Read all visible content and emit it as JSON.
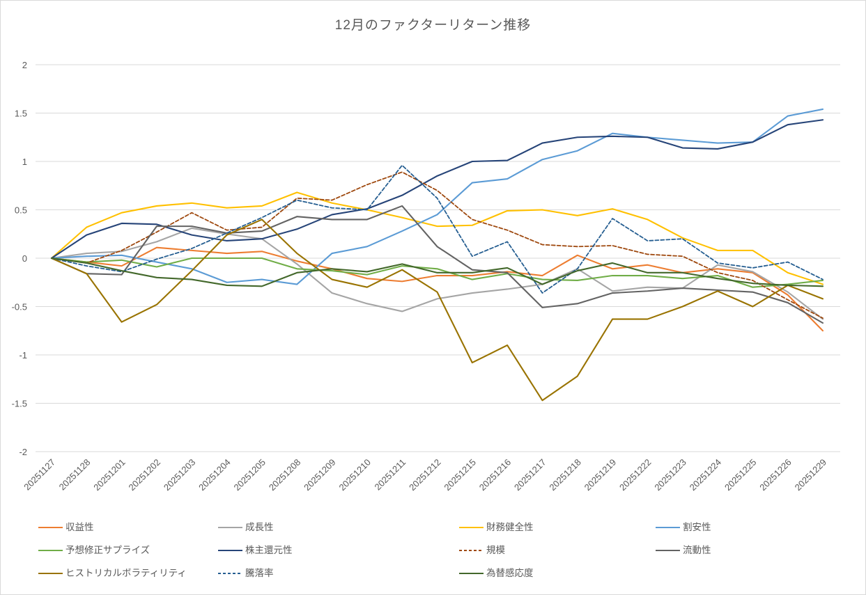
{
  "chart": {
    "title": "12月のファクターリターン推移"
  },
  "chart_data": {
    "type": "line",
    "title": "12月のファクターリターン推移",
    "xlabel": "",
    "ylabel": "",
    "ylim": [
      -2,
      2
    ],
    "grid": true,
    "legend_position": "bottom",
    "y_ticks": [
      "2",
      "1.5",
      "1",
      "0.5",
      "0",
      "-0.5",
      "-1",
      "-1.5",
      "-2"
    ],
    "y_tick_values": [
      2,
      1.5,
      1,
      0.5,
      0,
      -0.5,
      -1,
      -1.5,
      -2
    ],
    "categories": [
      "20251127",
      "20251128",
      "20251201",
      "20251202",
      "20251203",
      "20251204",
      "20251205",
      "20251208",
      "20251209",
      "20251210",
      "20251211",
      "20251212",
      "20251215",
      "20251216",
      "20251217",
      "20251218",
      "20251219",
      "20251222",
      "20251223",
      "20251224",
      "20251225",
      "20251226",
      "20251229"
    ],
    "series": [
      {
        "key": "profitability",
        "name": "収益性",
        "color": "#ED7D31",
        "dash": false,
        "values": [
          0,
          -0.04,
          -0.08,
          0.11,
          0.08,
          0.05,
          0.07,
          -0.03,
          -0.11,
          -0.21,
          -0.24,
          -0.18,
          -0.18,
          -0.14,
          -0.18,
          0.03,
          -0.11,
          -0.07,
          -0.15,
          -0.11,
          -0.15,
          -0.38,
          -0.75
        ]
      },
      {
        "key": "growth",
        "name": "成長性",
        "color": "#A5A5A5",
        "dash": false,
        "values": [
          0,
          0.05,
          0.07,
          0.17,
          0.31,
          0.25,
          0.2,
          -0.06,
          -0.36,
          -0.47,
          -0.55,
          -0.42,
          -0.36,
          -0.32,
          -0.27,
          -0.11,
          -0.34,
          -0.3,
          -0.31,
          -0.07,
          -0.14,
          -0.35,
          -0.63
        ]
      },
      {
        "key": "financial-health",
        "name": "財務健全性",
        "color": "#FFC000",
        "dash": false,
        "values": [
          0,
          0.32,
          0.47,
          0.54,
          0.57,
          0.52,
          0.54,
          0.68,
          0.57,
          0.5,
          0.42,
          0.33,
          0.34,
          0.49,
          0.5,
          0.44,
          0.51,
          0.4,
          0.21,
          0.08,
          0.08,
          -0.15,
          -0.27
        ]
      },
      {
        "key": "value",
        "name": "割安性",
        "color": "#5B9BD5",
        "dash": false,
        "values": [
          0,
          0.02,
          0.03,
          -0.04,
          -0.11,
          -0.25,
          -0.22,
          -0.27,
          0.05,
          0.12,
          0.28,
          0.45,
          0.78,
          0.82,
          1.02,
          1.11,
          1.29,
          1.25,
          1.22,
          1.19,
          1.2,
          1.47,
          1.54
        ]
      },
      {
        "key": "estimate-revision-surprise",
        "name": "予想修正サプライズ",
        "color": "#70AD47",
        "dash": false,
        "values": [
          0,
          -0.04,
          -0.02,
          -0.09,
          0,
          0,
          0,
          -0.11,
          -0.13,
          -0.17,
          -0.08,
          -0.11,
          -0.22,
          -0.16,
          -0.22,
          -0.23,
          -0.18,
          -0.18,
          -0.21,
          -0.18,
          -0.3,
          -0.27,
          -0.23
        ]
      },
      {
        "key": "shareholder-return",
        "name": "株主還元性",
        "color": "#264478",
        "dash": false,
        "values": [
          0,
          0.24,
          0.36,
          0.35,
          0.24,
          0.18,
          0.2,
          0.3,
          0.45,
          0.51,
          0.65,
          0.85,
          1.0,
          1.01,
          1.19,
          1.25,
          1.26,
          1.25,
          1.14,
          1.13,
          1.2,
          1.38,
          1.43
        ]
      },
      {
        "key": "size",
        "name": "規模",
        "color": "#9E480E",
        "dash": true,
        "values": [
          0,
          -0.05,
          0.08,
          0.27,
          0.47,
          0.29,
          0.32,
          0.62,
          0.6,
          0.76,
          0.89,
          0.7,
          0.4,
          0.29,
          0.14,
          0.12,
          0.13,
          0.04,
          0.02,
          -0.15,
          -0.23,
          -0.43,
          -0.62
        ]
      },
      {
        "key": "liquidity",
        "name": "流動性",
        "color": "#636363",
        "dash": false,
        "values": [
          0,
          -0.16,
          -0.17,
          0.33,
          0.33,
          0.26,
          0.28,
          0.43,
          0.4,
          0.4,
          0.54,
          0.12,
          -0.12,
          -0.15,
          -0.51,
          -0.47,
          -0.36,
          -0.34,
          -0.31,
          -0.33,
          -0.35,
          -0.46,
          -0.67
        ]
      },
      {
        "key": "historical-volatility",
        "name": "ヒストリカルボラティリティ",
        "color": "#997300",
        "dash": false,
        "values": [
          0,
          -0.16,
          -0.66,
          -0.48,
          -0.13,
          0.24,
          0.4,
          0.05,
          -0.22,
          -0.3,
          -0.12,
          -0.35,
          -1.08,
          -0.9,
          -1.47,
          -1.22,
          -0.63,
          -0.63,
          -0.5,
          -0.34,
          -0.5,
          -0.28,
          -0.42
        ]
      },
      {
        "key": "price-change-rate",
        "name": "騰落率",
        "color": "#255E91",
        "dash": true,
        "values": [
          0,
          -0.08,
          -0.14,
          -0.01,
          0.1,
          0.26,
          0.42,
          0.6,
          0.52,
          0.5,
          0.96,
          0.62,
          0.02,
          0.17,
          -0.36,
          -0.11,
          0.41,
          0.18,
          0.2,
          -0.05,
          -0.1,
          -0.04,
          -0.22
        ]
      },
      {
        "key": "fx-sensitivity",
        "name": "為替感応度",
        "color": "#43682B",
        "dash": false,
        "values": [
          0,
          -0.05,
          -0.13,
          -0.2,
          -0.22,
          -0.28,
          -0.29,
          -0.15,
          -0.11,
          -0.14,
          -0.06,
          -0.15,
          -0.15,
          -0.1,
          -0.27,
          -0.13,
          -0.05,
          -0.15,
          -0.15,
          -0.21,
          -0.26,
          -0.28,
          -0.29
        ]
      }
    ]
  },
  "colors": {
    "grid": "#D9D9D9",
    "axis_text": "#595959",
    "title_text": "#595959",
    "background": "#FFFFFF"
  }
}
